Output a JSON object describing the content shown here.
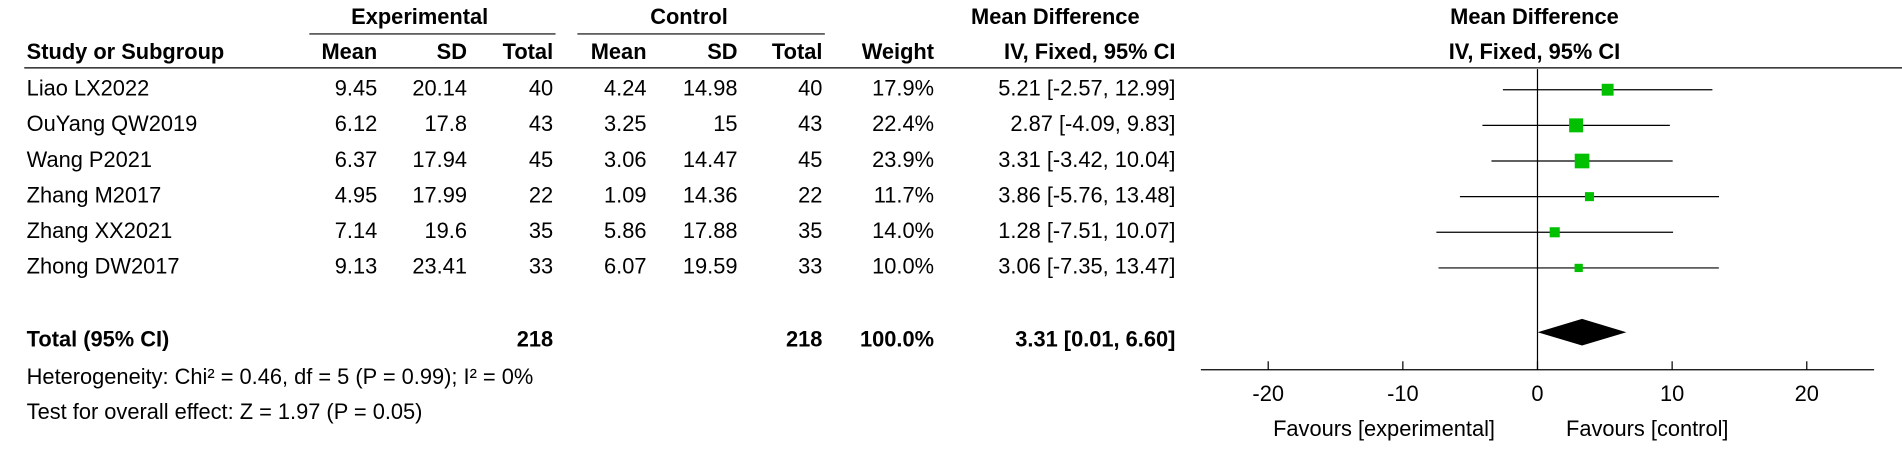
{
  "chart_data": {
    "type": "forest",
    "group_headers": [
      "Experimental",
      "Control",
      "Mean Difference",
      "Mean Difference"
    ],
    "columns": [
      "Study or Subgroup",
      "Mean",
      "SD",
      "Total",
      "Mean",
      "SD",
      "Total",
      "Weight",
      "IV, Fixed, 95% CI",
      "IV, Fixed, 95% CI"
    ],
    "studies": [
      {
        "name": "Liao LX2022",
        "exp_mean": 9.45,
        "exp_sd": 20.14,
        "exp_total": 40,
        "ctrl_mean": 4.24,
        "ctrl_sd": 14.98,
        "ctrl_total": 40,
        "weight": 17.9,
        "weight_label": "17.9%",
        "md": 5.21,
        "lower": -2.57,
        "upper": 12.99,
        "ci_label": "5.21 [-2.57, 12.99]"
      },
      {
        "name": "OuYang QW2019",
        "exp_mean": 6.12,
        "exp_sd": 17.8,
        "exp_total": 43,
        "ctrl_mean": 3.25,
        "ctrl_sd": 15,
        "ctrl_total": 43,
        "weight": 22.4,
        "weight_label": "22.4%",
        "md": 2.87,
        "lower": -4.09,
        "upper": 9.83,
        "ci_label": "2.87 [-4.09, 9.83]"
      },
      {
        "name": "Wang P2021",
        "exp_mean": 6.37,
        "exp_sd": 17.94,
        "exp_total": 45,
        "ctrl_mean": 3.06,
        "ctrl_sd": 14.47,
        "ctrl_total": 45,
        "weight": 23.9,
        "weight_label": "23.9%",
        "md": 3.31,
        "lower": -3.42,
        "upper": 10.04,
        "ci_label": "3.31 [-3.42, 10.04]"
      },
      {
        "name": "Zhang M2017",
        "exp_mean": 4.95,
        "exp_sd": 17.99,
        "exp_total": 22,
        "ctrl_mean": 1.09,
        "ctrl_sd": 14.36,
        "ctrl_total": 22,
        "weight": 11.7,
        "weight_label": "11.7%",
        "md": 3.86,
        "lower": -5.76,
        "upper": 13.48,
        "ci_label": "3.86 [-5.76, 13.48]"
      },
      {
        "name": "Zhang XX2021",
        "exp_mean": 7.14,
        "exp_sd": 19.6,
        "exp_total": 35,
        "ctrl_mean": 5.86,
        "ctrl_sd": 17.88,
        "ctrl_total": 35,
        "weight": 14.0,
        "weight_label": "14.0%",
        "md": 1.28,
        "lower": -7.51,
        "upper": 10.07,
        "ci_label": "1.28 [-7.51, 10.07]"
      },
      {
        "name": "Zhong DW2017",
        "exp_mean": 9.13,
        "exp_sd": 23.41,
        "exp_total": 33,
        "ctrl_mean": 6.07,
        "ctrl_sd": 19.59,
        "ctrl_total": 33,
        "weight": 10.0,
        "weight_label": "10.0%",
        "md": 3.06,
        "lower": -7.35,
        "upper": 13.47,
        "ci_label": "3.06 [-7.35, 13.47]"
      }
    ],
    "total": {
      "name": "Total (95% CI)",
      "exp_total": 218,
      "ctrl_total": 218,
      "weight_label": "100.0%",
      "md": 3.31,
      "lower": 0.01,
      "upper": 6.6,
      "ci_label": "3.31 [0.01, 6.60]"
    },
    "heterogeneity": "Heterogeneity: Chi² = 0.46, df = 5 (P = 0.99); I² = 0%",
    "overall_effect": "Test for overall effect: Z = 1.97 (P = 0.05)",
    "xlim": [
      -25,
      25
    ],
    "xticks": [
      -20,
      -10,
      0,
      10,
      20
    ],
    "favours_left": "Favours [experimental]",
    "favours_right": "Favours [control]",
    "color": "#00c000"
  }
}
